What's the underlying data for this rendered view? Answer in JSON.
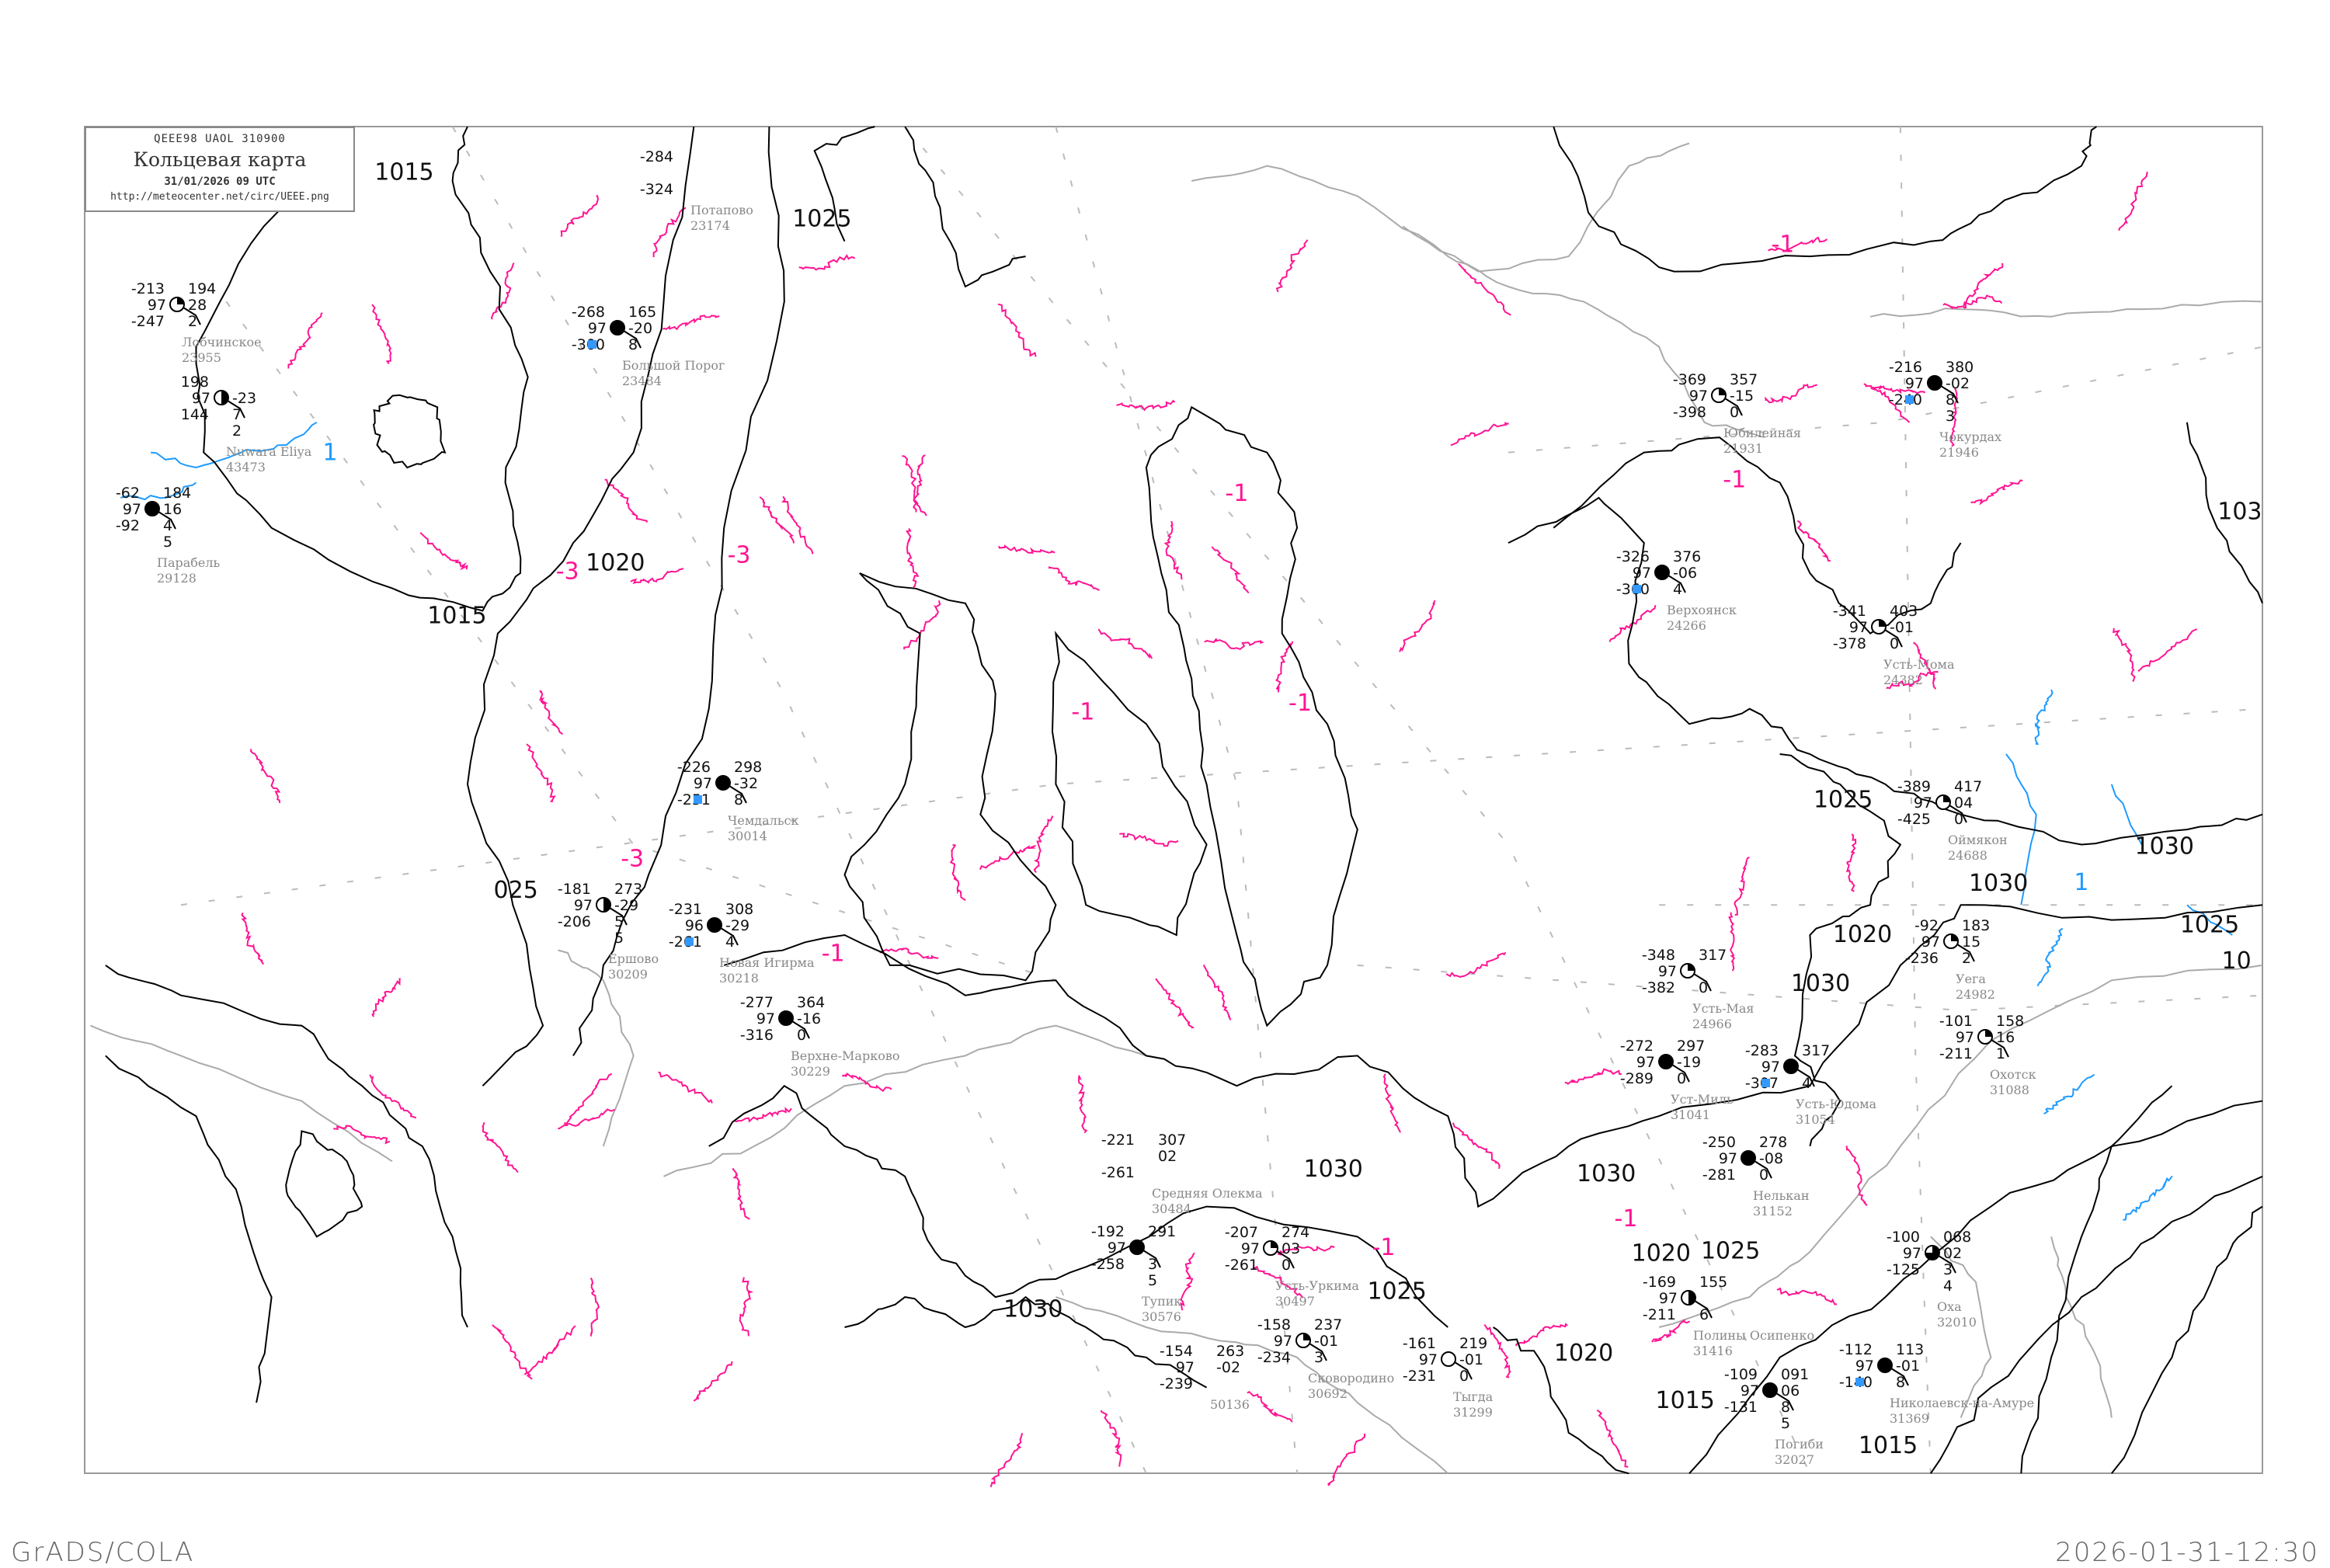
{
  "header": {
    "code_line": "QEEE98  UAOL  310900",
    "title": "Кольцевая карта",
    "datetime": "31/01/2026 09 UTC",
    "url": "http://meteocenter.net/circ/UEEE.png"
  },
  "footer": {
    "left": "GrADS/COLA",
    "right": "2026-01-31-12:30"
  },
  "colors": {
    "isobar": "#000000",
    "isotherm_negative": "#ff1493",
    "isotherm_positive": "#1e9bff",
    "coastline": "#aaaaaa",
    "snow_marker": "#3399ff",
    "station_name": "#888888"
  },
  "isobar_labels": [
    "1015",
    "1015",
    "1025",
    "1020",
    "025",
    "1030",
    "1030",
    "1030",
    "1025",
    "1030",
    "1030",
    "1025",
    "1020",
    "103",
    "1025",
    "1020",
    "1030",
    "1025",
    "1020",
    "1015",
    "1015",
    "10"
  ],
  "isotherm_labels": [
    {
      "text": "-3",
      "sign": "negative"
    },
    {
      "text": "-3",
      "sign": "negative"
    },
    {
      "text": "-3",
      "sign": "negative"
    },
    {
      "text": "-1",
      "sign": "negative"
    },
    {
      "text": "-1",
      "sign": "negative"
    },
    {
      "text": "-1",
      "sign": "negative"
    },
    {
      "text": "-1",
      "sign": "negative"
    },
    {
      "text": "-1",
      "sign": "negative"
    },
    {
      "text": "-1",
      "sign": "negative"
    },
    {
      "text": "-1",
      "sign": "negative"
    },
    {
      "text": "-1",
      "sign": "negative"
    },
    {
      "text": "1",
      "sign": "positive"
    },
    {
      "text": "1",
      "sign": "positive"
    }
  ],
  "stations": [
    {
      "name": "Юбилейная",
      "id": "21931",
      "temp": "-369",
      "dew": "-398",
      "vis": "97",
      "pressure": "357",
      "tendency": "-15",
      "extra": [
        "0"
      ],
      "cloud_cover": 0.25,
      "snow": false
    },
    {
      "name": "Чокурдах",
      "id": "21946",
      "temp": "-216",
      "dew": "-240",
      "vis": "97",
      "pressure": "380",
      "tendency": "-02",
      "extra": [
        "8",
        "3"
      ],
      "cloud_cover": 1,
      "snow": true
    },
    {
      "name": "Верхоянск",
      "id": "24266",
      "temp": "-326",
      "dew": "-360",
      "vis": "97",
      "pressure": "376",
      "tendency": "-06",
      "extra": [
        "4"
      ],
      "cloud_cover": 1,
      "snow": true
    },
    {
      "name": "Усть-Мома",
      "id": "24382",
      "temp": "-341",
      "dew": "-378",
      "vis": "97",
      "pressure": "403",
      "tendency": "-01",
      "extra": [
        "0"
      ],
      "cloud_cover": 0.25,
      "snow": false
    },
    {
      "name": "Большой Порог",
      "id": "23484",
      "temp": "-268",
      "dew": "-300",
      "vis": "97",
      "pressure": "165",
      "tendency": "-20",
      "extra": [
        "8"
      ],
      "cloud_cover": 1,
      "snow": true
    },
    {
      "name": "Потапово",
      "id": "23174",
      "temp": "-284",
      "dew": "-324",
      "vis": "",
      "pressure": "",
      "tendency": "",
      "extra": [],
      "cloud_cover": null,
      "snow": false
    },
    {
      "name": "Лобчинское",
      "id": "23955",
      "temp": "-213",
      "dew": "-247",
      "vis": "97",
      "pressure": "194",
      "tendency": "28",
      "extra": [
        "2"
      ],
      "cloud_cover": 0.25,
      "snow": false
    },
    {
      "name": "Nuwara Eliya",
      "id": "43473",
      "temp": "198",
      "dew": "144",
      "vis": "97",
      "pressure": "",
      "tendency": "-23",
      "extra": [
        "7",
        "2"
      ],
      "cloud_cover": 0.5,
      "snow": false
    },
    {
      "name": "Парабель",
      "id": "29128",
      "temp": "-62",
      "dew": "-92",
      "vis": "97",
      "pressure": "184",
      "tendency": "16",
      "extra": [
        "4",
        "5"
      ],
      "cloud_cover": 1,
      "snow": false
    },
    {
      "name": "Усть-Мая",
      "id": "24966",
      "temp": "-348",
      "dew": "-382",
      "vis": "97",
      "pressure": "317",
      "tendency": "",
      "extra": [
        "0"
      ],
      "cloud_cover": 0.25,
      "snow": false
    },
    {
      "name": "Уст-Миль",
      "id": "31041",
      "temp": "-272",
      "dew": "-289",
      "vis": "97",
      "pressure": "297",
      "tendency": "-19",
      "extra": [
        "0"
      ],
      "cloud_cover": 1,
      "snow": false
    },
    {
      "name": "Усть-Юдома",
      "id": "31054",
      "temp": "-283",
      "dew": "-307",
      "vis": "97",
      "pressure": "317",
      "tendency": "",
      "extra": [
        "4"
      ],
      "cloud_cover": 1,
      "snow": true
    },
    {
      "name": "Нелькан",
      "id": "31152",
      "temp": "-250",
      "dew": "-281",
      "vis": "97",
      "pressure": "278",
      "tendency": "-08",
      "extra": [
        "0"
      ],
      "cloud_cover": 1,
      "snow": false
    },
    {
      "name": "Оймякон",
      "id": "24688",
      "temp": "-389",
      "dew": "-425",
      "vis": "97",
      "pressure": "417",
      "tendency": "04",
      "extra": [
        "0"
      ],
      "cloud_cover": 0.25,
      "snow": false
    },
    {
      "name": "Уега",
      "id": "24982",
      "temp": "-92",
      "dew": "-236",
      "vis": "97",
      "pressure": "183",
      "tendency": "15",
      "extra": [
        "2"
      ],
      "cloud_cover": 0.25,
      "snow": false
    },
    {
      "name": "Охотск",
      "id": "31088",
      "temp": "-101",
      "dew": "-211",
      "vis": "97",
      "pressure": "158",
      "tendency": "16",
      "extra": [
        "1"
      ],
      "cloud_cover": 0.25,
      "snow": false
    },
    {
      "name": "Тупик",
      "id": "30576",
      "temp": "-192",
      "dew": "-258",
      "vis": "97",
      "pressure": "291",
      "tendency": "",
      "extra": [
        "3",
        "5"
      ],
      "cloud_cover": 1,
      "snow": false
    },
    {
      "name": "Средняя Олекма",
      "id": "30484",
      "temp": "-221",
      "dew": "-261",
      "vis": "",
      "pressure": "307",
      "tendency": "02",
      "extra": [],
      "cloud_cover": null,
      "snow": false
    },
    {
      "name": "Усть-Уркима",
      "id": "30497",
      "temp": "-207",
      "dew": "-261",
      "vis": "97",
      "pressure": "274",
      "tendency": "03",
      "extra": [
        "0"
      ],
      "cloud_cover": 0.25,
      "snow": false
    },
    {
      "name": "Сковородино",
      "id": "30692",
      "temp": "-158",
      "dew": "-234",
      "vis": "97",
      "pressure": "237",
      "tendency": "-01",
      "extra": [
        "3"
      ],
      "cloud_cover": 0.25,
      "snow": false
    },
    {
      "name": "",
      "id": "50136",
      "temp": "-154",
      "dew": "-239",
      "vis": "97",
      "pressure": "263",
      "tendency": "-02",
      "extra": [],
      "cloud_cover": null,
      "snow": false
    },
    {
      "name": "Тыгда",
      "id": "31299",
      "temp": "-161",
      "dew": "-231",
      "vis": "97",
      "pressure": "219",
      "tendency": "-01",
      "extra": [
        "0"
      ],
      "cloud_cover": 0,
      "snow": false
    },
    {
      "name": "Николаевск-на-Амуре",
      "id": "31369",
      "temp": "-112",
      "dew": "-140",
      "vis": "97",
      "pressure": "113",
      "tendency": "-01",
      "extra": [
        "8"
      ],
      "cloud_cover": 1,
      "snow": true
    },
    {
      "name": "Погиби",
      "id": "32027",
      "temp": "-109",
      "dew": "-131",
      "vis": "97",
      "pressure": "091",
      "tendency": "06",
      "extra": [
        "8",
        "5"
      ],
      "cloud_cover": 1,
      "snow": false
    },
    {
      "name": "Оха",
      "id": "32010",
      "temp": "-100",
      "dew": "-125",
      "vis": "97",
      "pressure": "068",
      "tendency": "02",
      "extra": [
        "3",
        "4"
      ],
      "cloud_cover": 0.75,
      "snow": false
    },
    {
      "name": "Полины Осипенко",
      "id": "31416",
      "temp": "-169",
      "dew": "-211",
      "vis": "97",
      "pressure": "155",
      "tendency": "",
      "extra": [
        "6"
      ],
      "cloud_cover": 0.5,
      "snow": false
    },
    {
      "name": "Чемдальск",
      "id": "30014",
      "temp": "-226",
      "dew": "-251",
      "vis": "97",
      "pressure": "298",
      "tendency": "-32",
      "extra": [
        "8"
      ],
      "cloud_cover": 1,
      "snow": true
    },
    {
      "name": "Ершово",
      "id": "30209",
      "temp": "-181",
      "dew": "-206",
      "vis": "97",
      "pressure": "273",
      "tendency": "-29",
      "extra": [
        "5",
        "5"
      ],
      "cloud_cover": 0.5,
      "snow": false
    },
    {
      "name": "Новая Игирма",
      "id": "30218",
      "temp": "-231",
      "dew": "-261",
      "vis": "96",
      "pressure": "308",
      "tendency": "-29",
      "extra": [
        "4"
      ],
      "cloud_cover": 1,
      "snow": true
    },
    {
      "name": "Верхне-Марково",
      "id": "30229",
      "temp": "-277",
      "dew": "-316",
      "vis": "97",
      "pressure": "364",
      "tendency": "-16",
      "extra": [
        "0"
      ],
      "cloud_cover": 1,
      "snow": false
    }
  ]
}
